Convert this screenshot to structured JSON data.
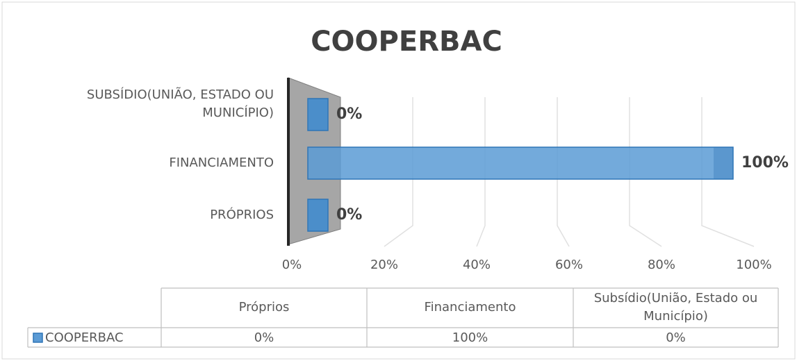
{
  "chart_data": {
    "type": "bar",
    "title": "COOPERBAC",
    "axis_labels": [
      [
        "PRÓPRIOS"
      ],
      [
        "FINANCIAMENTO"
      ],
      [
        "SUBSÍDIO(UNIÃO, ESTADO OU",
        "MUNICÍPIO)"
      ]
    ],
    "categories": [
      "Próprios",
      "Financiamento",
      "Subsídio(União, Estado ou Município)"
    ],
    "series": [
      {
        "name": "COOPERBAC",
        "color": "#5b9bd5",
        "values": [
          0,
          100,
          0
        ],
        "value_labels": [
          "0%",
          "100%",
          "0%"
        ]
      }
    ],
    "xlim": [
      0,
      100
    ],
    "xticks": [
      {
        "value": 0,
        "label": "0%"
      },
      {
        "value": 20,
        "label": "20%"
      },
      {
        "value": 40,
        "label": "40%"
      },
      {
        "value": 60,
        "label": "60%"
      },
      {
        "value": 80,
        "label": "80%"
      },
      {
        "value": 100,
        "label": "100%"
      }
    ],
    "grid": true,
    "data_table": true
  }
}
